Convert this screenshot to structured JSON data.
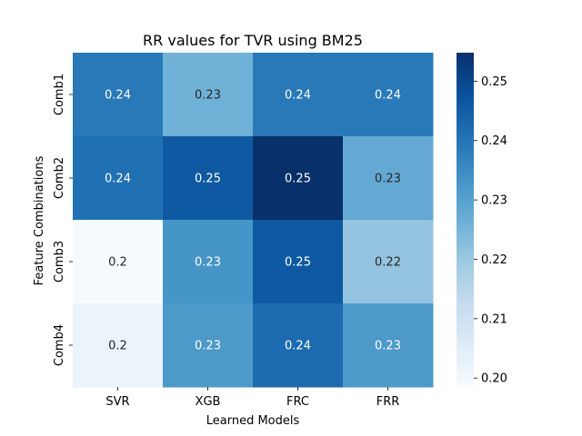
{
  "chart_data": {
    "type": "heatmap",
    "title": "RR values for TVR using BM25",
    "xlabel": "Learned Models",
    "ylabel": "Feature Combinations",
    "x_categories": [
      "SVR",
      "XGB",
      "FRC",
      "FRR"
    ],
    "y_categories": [
      "Comb1",
      "Comb2",
      "Comb3",
      "Comb4"
    ],
    "values": [
      [
        0.239,
        0.226,
        0.239,
        0.239
      ],
      [
        0.241,
        0.246,
        0.255,
        0.228
      ],
      [
        0.199,
        0.233,
        0.246,
        0.221
      ],
      [
        0.202,
        0.232,
        0.242,
        0.232
      ]
    ],
    "cell_labels": [
      [
        "0.24",
        "0.23",
        "0.24",
        "0.24"
      ],
      [
        "0.24",
        "0.25",
        "0.25",
        "0.23"
      ],
      [
        "0.2",
        "0.23",
        "0.25",
        "0.22"
      ],
      [
        "0.2",
        "0.23",
        "0.24",
        "0.23"
      ]
    ],
    "colorbar": {
      "colormap": "Blues",
      "vmin": 0.1985,
      "vmax": 0.2548,
      "ticks": [
        0.2,
        0.21,
        0.22,
        0.23,
        0.24,
        0.25
      ],
      "tick_labels": [
        "0.20",
        "0.21",
        "0.22",
        "0.23",
        "0.24",
        "0.25"
      ]
    },
    "grid": false,
    "legend": "colorbar-right"
  }
}
